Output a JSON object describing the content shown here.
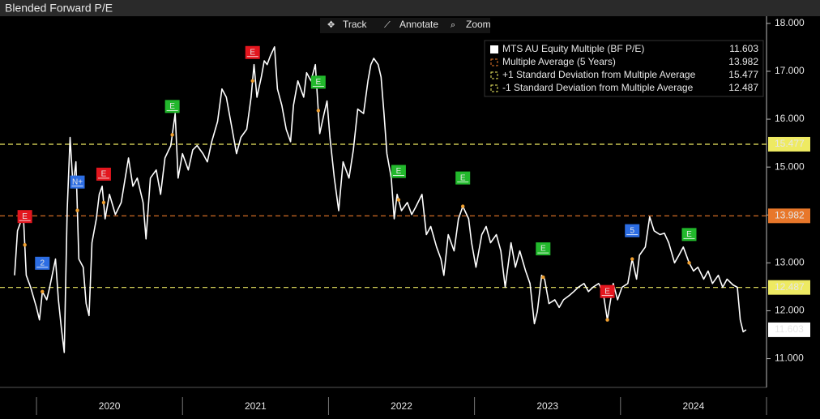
{
  "chart_data": {
    "type": "line",
    "title": "Blended Forward P/E",
    "toolbar": [
      "Track",
      "Annotate",
      "Zoom"
    ],
    "xlim": [
      2019.75,
      2025.0
    ],
    "xticks": [
      {
        "value": 2020.5,
        "label": "2020"
      },
      {
        "value": 2021.5,
        "label": "2021"
      },
      {
        "value": 2022.5,
        "label": "2022"
      },
      {
        "value": 2023.5,
        "label": "2023"
      },
      {
        "value": 2024.5,
        "label": "2024"
      }
    ],
    "ylim": [
      10.4,
      18.15
    ],
    "yticks": [
      {
        "value": 11,
        "label": "11.000"
      },
      {
        "value": 12,
        "label": "12.000"
      },
      {
        "value": 13,
        "label": "13.000"
      },
      {
        "value": 14,
        "label": "14.000"
      },
      {
        "value": 15,
        "label": "15.000"
      },
      {
        "value": 16,
        "label": "16.000"
      },
      {
        "value": 17,
        "label": "17.000"
      },
      {
        "value": 18,
        "label": "18.000"
      }
    ],
    "x": [
      2019.85,
      2019.87,
      2019.91,
      2019.93,
      2019.96,
      2020.0,
      2020.02,
      2020.04,
      2020.07,
      2020.09,
      2020.13,
      2020.15,
      2020.17,
      2020.19,
      2020.21,
      2020.23,
      2020.25,
      2020.27,
      2020.29,
      2020.32,
      2020.34,
      2020.36,
      2020.38,
      2020.41,
      2020.43,
      2020.45,
      2020.47,
      2020.5,
      2020.54,
      2020.58,
      2020.63,
      2020.66,
      2020.69,
      2020.73,
      2020.75,
      2020.78,
      2020.82,
      2020.85,
      2020.88,
      2020.92,
      2020.95,
      2020.97,
      2021.0,
      2021.04,
      2021.07,
      2021.1,
      2021.14,
      2021.17,
      2021.2,
      2021.24,
      2021.27,
      2021.3,
      2021.34,
      2021.37,
      2021.4,
      2021.44,
      2021.47,
      2021.49,
      2021.51,
      2021.54,
      2021.56,
      2021.58,
      2021.6,
      2021.63,
      2021.65,
      2021.68,
      2021.71,
      2021.74,
      2021.76,
      2021.79,
      2021.83,
      2021.85,
      2021.88,
      2021.91,
      2021.94,
      2021.97,
      2021.99,
      2022.01,
      2022.04,
      2022.07,
      2022.1,
      2022.14,
      2022.17,
      2022.2,
      2022.24,
      2022.27,
      2022.29,
      2022.31,
      2022.34,
      2022.36,
      2022.38,
      2022.4,
      2022.43,
      2022.45,
      2022.47,
      2022.5,
      2022.54,
      2022.57,
      2022.6,
      2022.64,
      2022.67,
      2022.7,
      2022.74,
      2022.77,
      2022.79,
      2022.82,
      2022.86,
      2022.89,
      2022.92,
      2022.96,
      2022.98,
      2023.01,
      2023.05,
      2023.08,
      2023.11,
      2023.15,
      2023.18,
      2023.21,
      2023.25,
      2023.28,
      2023.31,
      2023.35,
      2023.38,
      2023.41,
      2023.43,
      2023.46,
      2023.48,
      2023.51,
      2023.55,
      2023.58,
      2023.61,
      2023.65,
      2023.68,
      2023.71,
      2023.75,
      2023.78,
      2023.81,
      2023.85,
      2023.88,
      2023.91,
      2023.95,
      2023.98,
      2024.01,
      2024.05,
      2024.08,
      2024.11,
      2024.13,
      2024.17,
      2024.2,
      2024.23,
      2024.27,
      2024.3,
      2024.33,
      2024.37,
      2024.4,
      2024.43,
      2024.47,
      2024.5,
      2024.53,
      2024.57,
      2024.6,
      2024.63,
      2024.67,
      2024.7,
      2024.73,
      2024.77,
      2024.8,
      2024.82,
      2024.84,
      2024.86
    ],
    "series": [
      {
        "name": "MTS AU Equity Multiple (BF P/E)",
        "color": "#ffffff",
        "values": [
          12.74,
          13.67,
          14.01,
          12.74,
          12.49,
          12.07,
          11.81,
          12.4,
          12.23,
          12.49,
          13.08,
          12.23,
          11.64,
          11.13,
          14.09,
          15.62,
          14.6,
          15.11,
          13.08,
          12.91,
          12.15,
          11.9,
          13.42,
          13.92,
          14.43,
          14.6,
          13.92,
          14.43,
          14.01,
          14.26,
          15.19,
          14.6,
          14.77,
          14.26,
          13.5,
          14.77,
          14.94,
          14.43,
          15.19,
          15.45,
          16.12,
          14.77,
          15.28,
          14.94,
          15.36,
          15.45,
          15.28,
          15.11,
          15.53,
          15.95,
          16.63,
          16.46,
          15.79,
          15.28,
          15.62,
          15.79,
          16.46,
          17.14,
          16.46,
          16.88,
          17.22,
          17.14,
          17.31,
          17.51,
          16.63,
          16.29,
          15.79,
          15.53,
          16.29,
          16.8,
          16.46,
          16.97,
          16.8,
          17.14,
          15.7,
          16.12,
          16.38,
          15.62,
          14.77,
          14.09,
          15.11,
          14.77,
          15.36,
          16.21,
          16.12,
          16.8,
          17.14,
          17.27,
          17.14,
          16.88,
          16.12,
          15.28,
          14.77,
          13.92,
          14.43,
          14.09,
          14.26,
          14.01,
          14.18,
          14.43,
          13.59,
          13.76,
          13.33,
          13.08,
          12.74,
          13.59,
          13.25,
          13.92,
          14.18,
          13.92,
          13.42,
          12.91,
          13.59,
          13.76,
          13.42,
          13.59,
          13.25,
          12.49,
          13.42,
          12.91,
          13.25,
          12.83,
          12.57,
          11.73,
          11.98,
          12.74,
          12.66,
          12.15,
          12.23,
          12.07,
          12.23,
          12.32,
          12.4,
          12.49,
          12.57,
          12.4,
          12.49,
          12.57,
          12.4,
          11.81,
          12.57,
          12.23,
          12.49,
          12.57,
          13.08,
          12.66,
          13.16,
          13.33,
          13.96,
          13.67,
          13.59,
          13.62,
          13.42,
          13.0,
          13.16,
          13.33,
          13.0,
          12.83,
          12.91,
          12.66,
          12.83,
          12.57,
          12.74,
          12.49,
          12.66,
          12.54,
          12.49,
          11.81,
          11.56,
          11.603
        ]
      }
    ],
    "reference_lines": [
      {
        "name": "Multiple Average (5 Years)",
        "value": 13.982,
        "color": "#e8772a"
      },
      {
        "name": "+1 Standard Deviation from Multiple Average",
        "value": 15.477,
        "color": "#eeea62"
      },
      {
        "name": "-1 Standard Deviation from Multiple Average",
        "value": 12.487,
        "color": "#eeea62"
      }
    ],
    "events": [
      {
        "x": 2019.92,
        "label": "E",
        "color": "#e3161e"
      },
      {
        "x": 2020.04,
        "label": "2",
        "color": "#2c6de3"
      },
      {
        "x": 2020.28,
        "label": "N+",
        "color": "#2c6de3"
      },
      {
        "x": 2020.46,
        "label": "E",
        "color": "#e3161e"
      },
      {
        "x": 2020.93,
        "label": "E",
        "color": "#22b82c"
      },
      {
        "x": 2021.48,
        "label": "E",
        "color": "#e3161e"
      },
      {
        "x": 2021.93,
        "label": "E",
        "color": "#22b82c"
      },
      {
        "x": 2022.48,
        "label": "E",
        "color": "#22b82c"
      },
      {
        "x": 2022.92,
        "label": "E",
        "color": "#22b82c"
      },
      {
        "x": 2023.47,
        "label": "E",
        "color": "#22b82c"
      },
      {
        "x": 2023.91,
        "label": "E",
        "color": "#e3161e"
      },
      {
        "x": 2024.08,
        "label": "5",
        "color": "#2c6de3"
      },
      {
        "x": 2024.47,
        "label": "E",
        "color": "#22b82c"
      }
    ]
  }
}
